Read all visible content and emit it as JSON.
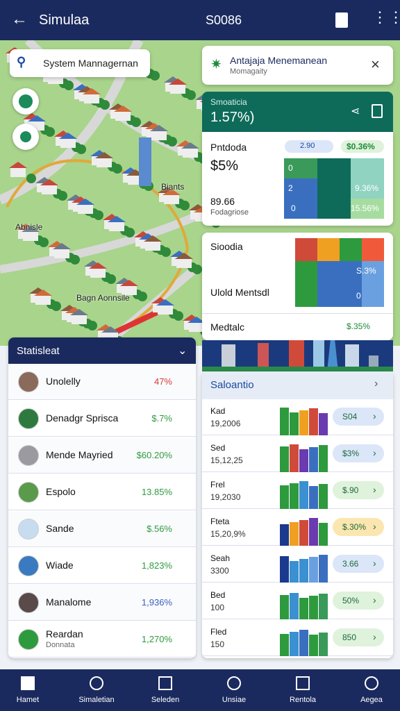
{
  "header": {
    "title": "Simulaa",
    "center": "S0086"
  },
  "search": {
    "placeholder": "System Mannagernan"
  },
  "map": {
    "labels": [
      "Biants",
      "Abnisle",
      "Bagn Aonnsile"
    ]
  },
  "notification": {
    "title": "Antajaja Menemanean",
    "subtitle": "Momagaity"
  },
  "summary": {
    "title": "Smoaticia",
    "value": "1.57%)"
  },
  "detail": {
    "title": "Pntdoda",
    "chip": "2.90",
    "change": "$0.36%",
    "value": "$5%",
    "amount": "89.66",
    "caption": "Fodagriose",
    "grid": [
      "0",
      "2",
      "0",
      "9.36%",
      "15.56%"
    ]
  },
  "mix": {
    "title": "Sioodia",
    "value": "S.3%",
    "label": "Ulold Mentsdl",
    "count": "0",
    "footer": "Medtalc",
    "footer_value": "$.35%"
  },
  "stats": {
    "title": "Statisleat",
    "rows": [
      {
        "name": "Unolelly",
        "value": "47%",
        "color": "#d93a3a"
      },
      {
        "name": "Denadgr Sprisca",
        "value": "$.7%",
        "color": "#2e9a3e"
      },
      {
        "name": "Mende Mayried",
        "value": "$60.20%",
        "color": "#2e9a3e"
      },
      {
        "name": "Espolo",
        "value": "13.85%",
        "color": "#2e9a3e"
      },
      {
        "name": "Sande",
        "value": "$.56%",
        "color": "#2e9a3e"
      },
      {
        "name": "Wiade",
        "value": "1,823%",
        "color": "#2e9a3e"
      },
      {
        "name": "Manalome",
        "value": "1,936%",
        "color": "#3a5fc0"
      },
      {
        "name": "Reardan",
        "sub": "Donnata",
        "value": "1,270%",
        "color": "#2e9a3e"
      }
    ]
  },
  "sales": {
    "title": "Saloantio",
    "rows": [
      {
        "name": "Kad",
        "sub": "19,2006",
        "value": "S04"
      },
      {
        "name": "Sed",
        "sub": "15,12,25",
        "value": "$3%"
      },
      {
        "name": "Frel",
        "sub": "19,2030",
        "value": "$.90"
      },
      {
        "name": "Fteta",
        "sub": "15,20,9%",
        "value": "$.30%"
      },
      {
        "name": "Seah",
        "sub": "3300",
        "value": "3.66"
      },
      {
        "name": "Bed",
        "sub": "100",
        "value": "50%"
      },
      {
        "name": "Fled",
        "sub": "150",
        "value": "850"
      }
    ]
  },
  "nav": [
    "Hamet",
    "Simaletian",
    "Seleden",
    "Unsiae",
    "Rentola",
    "Aegea"
  ]
}
